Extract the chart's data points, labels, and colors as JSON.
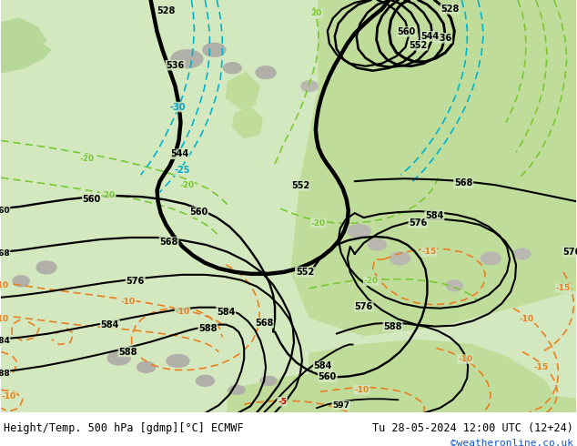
{
  "title_left": "Height/Temp. 500 hPa [gdmp][°C] ECMWF",
  "title_right": "Tu 28-05-2024 12:00 UTC (12+24)",
  "credit": "©weatheronline.co.uk",
  "fig_width": 6.34,
  "fig_height": 4.9,
  "dpi": 100,
  "bg_green": "#c8e0b0",
  "bg_grey": "#d0d0d0",
  "bg_light": "#e8e8e0",
  "map_bg": "#d4e8c4"
}
